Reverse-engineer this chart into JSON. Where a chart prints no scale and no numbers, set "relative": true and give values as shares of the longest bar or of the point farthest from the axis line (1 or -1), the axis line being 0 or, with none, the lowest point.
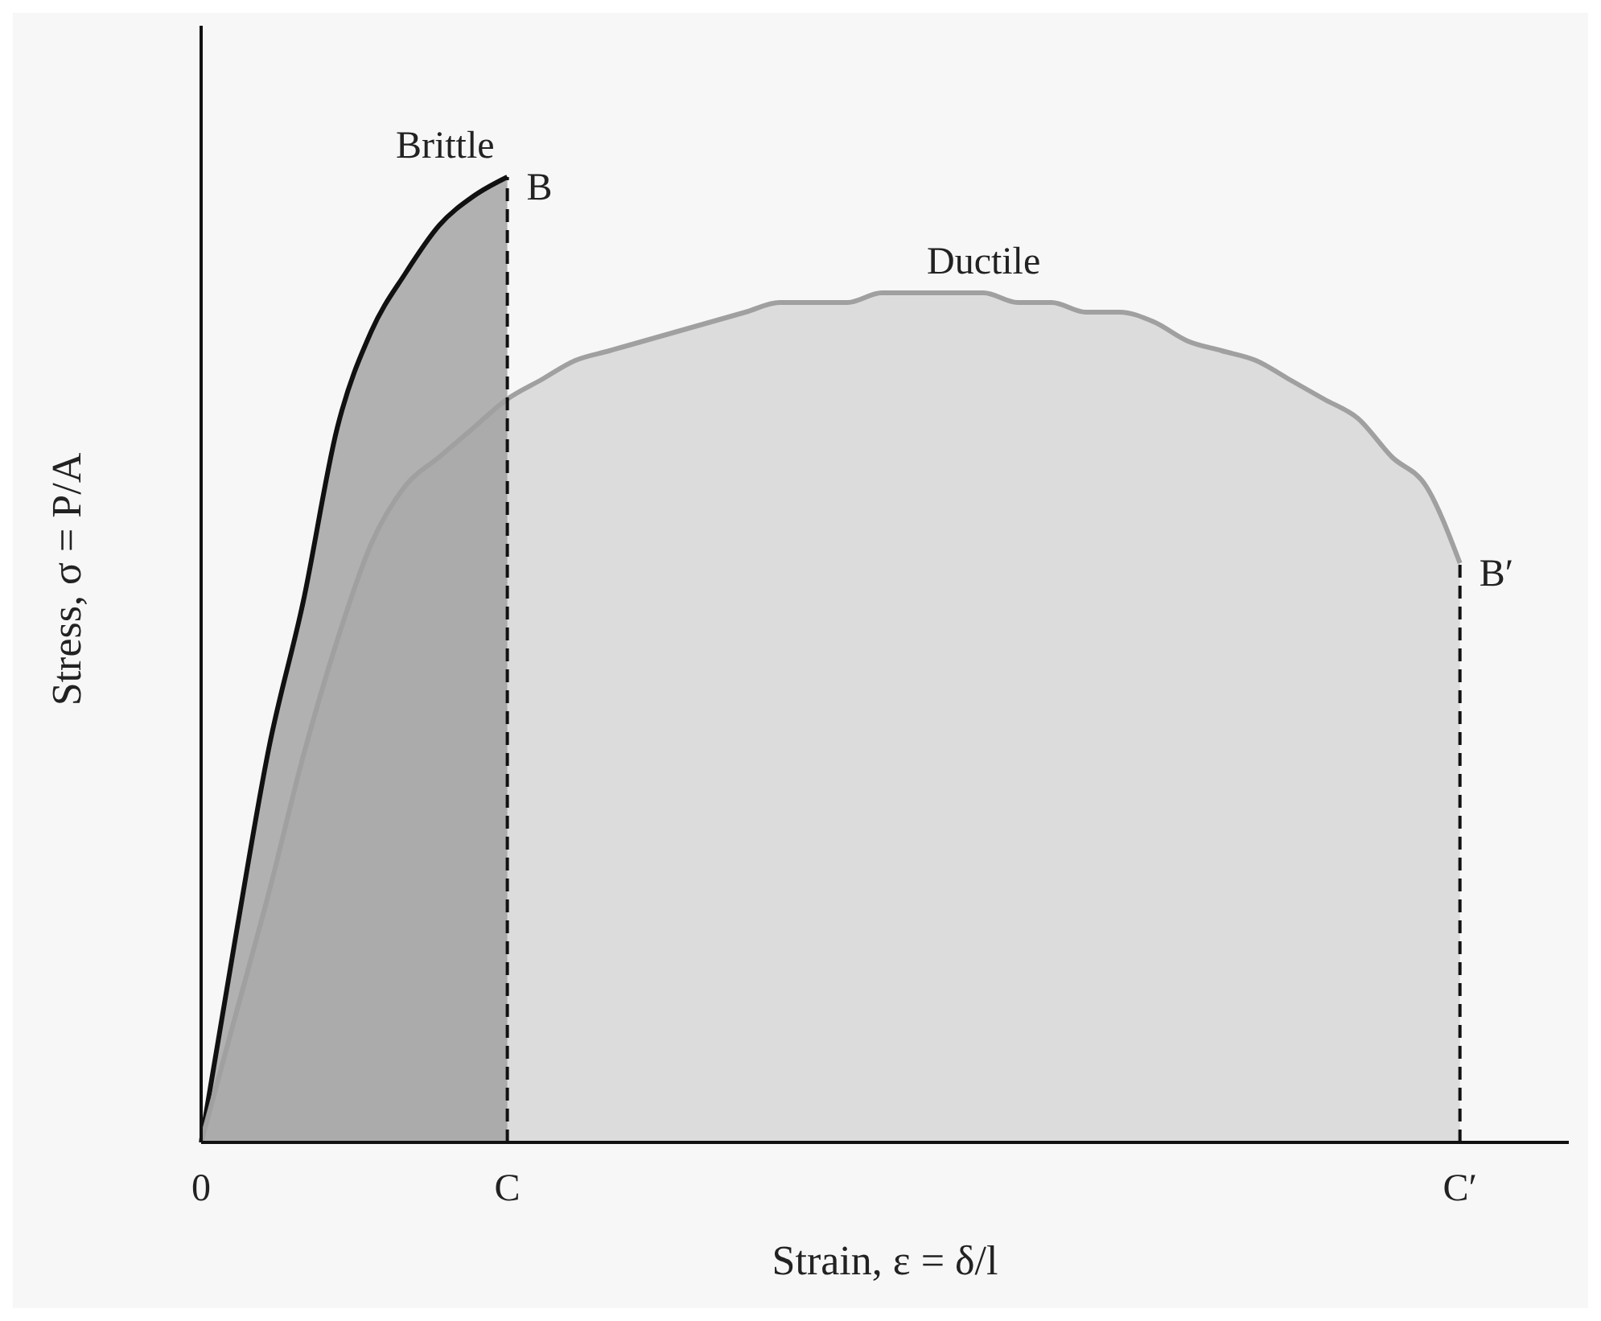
{
  "chart_data": {
    "type": "area",
    "relative": true,
    "xlabel": "Strain, ε = δ/l",
    "ylabel": "Stress, σ = P/A",
    "categories": [
      "0",
      null,
      null,
      null,
      null,
      null,
      null,
      null,
      null,
      "C",
      null,
      null,
      null,
      null,
      null,
      null,
      null,
      null,
      null,
      null,
      null,
      null,
      null,
      null,
      null,
      null,
      null,
      null,
      null,
      null,
      null,
      null,
      null,
      null,
      null,
      null,
      null,
      "C′",
      null,
      null,
      null
    ],
    "series": [
      {
        "name": "Brittle",
        "color": "#111111",
        "values": [
          0,
          0.21,
          0.41,
          0.56,
          0.74,
          0.84,
          0.9,
          0.95,
          0.98,
          1,
          null,
          null,
          null,
          null,
          null,
          null,
          null,
          null,
          null,
          null,
          null,
          null,
          null,
          null,
          null,
          null,
          null,
          null,
          null,
          null,
          null,
          null,
          null,
          null,
          null,
          null,
          null,
          null,
          null,
          null,
          null
        ]
      },
      {
        "name": "Ductile",
        "color": "#a0a0a0",
        "values": [
          0,
          0.13,
          0.26,
          0.4,
          0.52,
          0.62,
          0.68,
          0.71,
          0.74,
          0.77,
          0.79,
          0.81,
          0.82,
          0.83,
          0.84,
          0.85,
          0.86,
          0.87,
          0.87,
          0.87,
          0.88,
          0.88,
          0.88,
          0.88,
          0.87,
          0.87,
          0.86,
          0.86,
          0.85,
          0.83,
          0.82,
          0.81,
          0.79,
          0.77,
          0.75,
          0.71,
          0.68,
          0.6,
          null,
          null,
          null
        ]
      }
    ],
    "ref_lines": [
      {
        "axis": "x",
        "value": "C",
        "line_style": "dashed",
        "color": "#111111"
      },
      {
        "axis": "x",
        "value": "C′",
        "line_style": "dashed",
        "color": "#111111"
      }
    ],
    "annotations": [
      {
        "text": "B",
        "x": "C",
        "y": 1
      },
      {
        "text": "B′",
        "x": "C′",
        "y": 0.6
      }
    ]
  }
}
